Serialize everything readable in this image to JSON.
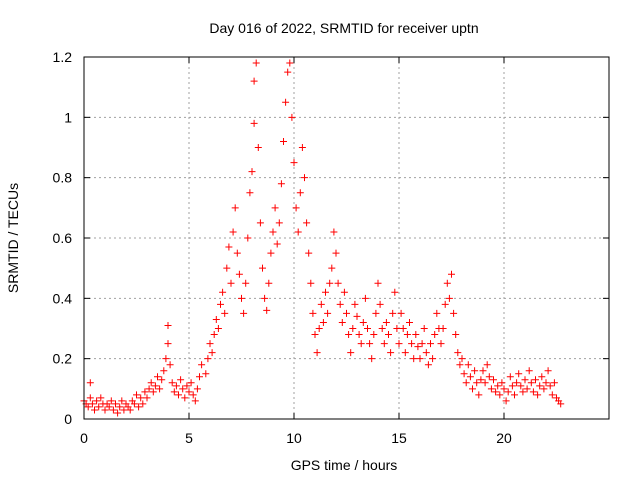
{
  "chart_data": {
    "type": "scatter",
    "title": "Day 016 of 2022, SRMTID for receiver uptn",
    "xlabel": "GPS time / hours",
    "ylabel": "SRMTID / TECUs",
    "xlim": [
      0,
      25
    ],
    "ylim": [
      0,
      1.2
    ],
    "x_ticks": [
      0,
      5,
      10,
      15,
      20
    ],
    "x_tick_labels": [
      "0",
      "5",
      "10",
      "15",
      "20"
    ],
    "y_ticks": [
      0,
      0.2,
      0.4,
      0.6,
      0.8,
      1,
      1.2
    ],
    "y_tick_labels": [
      "0",
      "0.2",
      "0.4",
      "0.6",
      "0.8",
      "1",
      "1.2"
    ],
    "grid": true,
    "marker": "+",
    "color": "#ff0000",
    "series": [
      {
        "name": "SRMTID",
        "points": [
          [
            0.0,
            0.06
          ],
          [
            0.1,
            0.05
          ],
          [
            0.2,
            0.04
          ],
          [
            0.3,
            0.07
          ],
          [
            0.3,
            0.12
          ],
          [
            0.4,
            0.05
          ],
          [
            0.5,
            0.03
          ],
          [
            0.6,
            0.06
          ],
          [
            0.7,
            0.04
          ],
          [
            0.8,
            0.07
          ],
          [
            0.9,
            0.05
          ],
          [
            1.0,
            0.03
          ],
          [
            1.1,
            0.05
          ],
          [
            1.2,
            0.04
          ],
          [
            1.3,
            0.06
          ],
          [
            1.4,
            0.03
          ],
          [
            1.5,
            0.05
          ],
          [
            1.6,
            0.02
          ],
          [
            1.7,
            0.04
          ],
          [
            1.8,
            0.06
          ],
          [
            1.9,
            0.03
          ],
          [
            2.0,
            0.05
          ],
          [
            2.1,
            0.04
          ],
          [
            2.2,
            0.03
          ],
          [
            2.3,
            0.06
          ],
          [
            2.4,
            0.05
          ],
          [
            2.5,
            0.08
          ],
          [
            2.6,
            0.04
          ],
          [
            2.7,
            0.07
          ],
          [
            2.8,
            0.05
          ],
          [
            2.9,
            0.09
          ],
          [
            3.0,
            0.07
          ],
          [
            3.1,
            0.1
          ],
          [
            3.2,
            0.12
          ],
          [
            3.3,
            0.09
          ],
          [
            3.4,
            0.11
          ],
          [
            3.5,
            0.14
          ],
          [
            3.6,
            0.1
          ],
          [
            3.7,
            0.13
          ],
          [
            3.8,
            0.16
          ],
          [
            3.9,
            0.2
          ],
          [
            4.0,
            0.25
          ],
          [
            4.0,
            0.31
          ],
          [
            4.1,
            0.18
          ],
          [
            4.2,
            0.12
          ],
          [
            4.3,
            0.09
          ],
          [
            4.4,
            0.11
          ],
          [
            4.5,
            0.08
          ],
          [
            4.6,
            0.13
          ],
          [
            4.7,
            0.1
          ],
          [
            4.8,
            0.07
          ],
          [
            4.9,
            0.11
          ],
          [
            5.0,
            0.09
          ],
          [
            5.1,
            0.12
          ],
          [
            5.2,
            0.08
          ],
          [
            5.3,
            0.06
          ],
          [
            5.4,
            0.1
          ],
          [
            5.5,
            0.14
          ],
          [
            5.6,
            0.18
          ],
          [
            5.8,
            0.15
          ],
          [
            5.9,
            0.2
          ],
          [
            6.0,
            0.25
          ],
          [
            6.1,
            0.22
          ],
          [
            6.2,
            0.28
          ],
          [
            6.3,
            0.33
          ],
          [
            6.4,
            0.3
          ],
          [
            6.5,
            0.38
          ],
          [
            6.6,
            0.42
          ],
          [
            6.7,
            0.35
          ],
          [
            6.8,
            0.5
          ],
          [
            6.9,
            0.57
          ],
          [
            7.0,
            0.45
          ],
          [
            7.1,
            0.62
          ],
          [
            7.2,
            0.7
          ],
          [
            7.3,
            0.55
          ],
          [
            7.4,
            0.48
          ],
          [
            7.5,
            0.4
          ],
          [
            7.6,
            0.35
          ],
          [
            7.7,
            0.45
          ],
          [
            7.8,
            0.6
          ],
          [
            7.9,
            0.75
          ],
          [
            8.0,
            0.82
          ],
          [
            8.1,
            0.98
          ],
          [
            8.1,
            1.12
          ],
          [
            8.2,
            1.18
          ],
          [
            8.3,
            0.9
          ],
          [
            8.4,
            0.65
          ],
          [
            8.5,
            0.5
          ],
          [
            8.6,
            0.4
          ],
          [
            8.7,
            0.36
          ],
          [
            8.8,
            0.45
          ],
          [
            8.9,
            0.55
          ],
          [
            9.0,
            0.62
          ],
          [
            9.1,
            0.7
          ],
          [
            9.2,
            0.58
          ],
          [
            9.3,
            0.65
          ],
          [
            9.4,
            0.78
          ],
          [
            9.5,
            0.92
          ],
          [
            9.6,
            1.05
          ],
          [
            9.7,
            1.15
          ],
          [
            9.8,
            1.18
          ],
          [
            9.9,
            1.0
          ],
          [
            10.0,
            0.85
          ],
          [
            10.1,
            0.7
          ],
          [
            10.2,
            0.62
          ],
          [
            10.3,
            0.75
          ],
          [
            10.4,
            0.9
          ],
          [
            10.5,
            0.8
          ],
          [
            10.6,
            0.65
          ],
          [
            10.7,
            0.55
          ],
          [
            10.8,
            0.45
          ],
          [
            10.9,
            0.35
          ],
          [
            11.0,
            0.28
          ],
          [
            11.1,
            0.22
          ],
          [
            11.2,
            0.3
          ],
          [
            11.3,
            0.38
          ],
          [
            11.4,
            0.32
          ],
          [
            11.5,
            0.42
          ],
          [
            11.6,
            0.35
          ],
          [
            11.7,
            0.45
          ],
          [
            11.8,
            0.5
          ],
          [
            11.9,
            0.62
          ],
          [
            12.0,
            0.55
          ],
          [
            12.1,
            0.45
          ],
          [
            12.2,
            0.38
          ],
          [
            12.3,
            0.32
          ],
          [
            12.4,
            0.42
          ],
          [
            12.5,
            0.35
          ],
          [
            12.6,
            0.28
          ],
          [
            12.7,
            0.22
          ],
          [
            12.8,
            0.3
          ],
          [
            12.9,
            0.38
          ],
          [
            13.0,
            0.34
          ],
          [
            13.1,
            0.28
          ],
          [
            13.2,
            0.25
          ],
          [
            13.3,
            0.32
          ],
          [
            13.4,
            0.4
          ],
          [
            13.5,
            0.3
          ],
          [
            13.6,
            0.25
          ],
          [
            13.7,
            0.2
          ],
          [
            13.8,
            0.28
          ],
          [
            13.9,
            0.35
          ],
          [
            14.0,
            0.45
          ],
          [
            14.1,
            0.38
          ],
          [
            14.2,
            0.3
          ],
          [
            14.3,
            0.25
          ],
          [
            14.4,
            0.32
          ],
          [
            14.5,
            0.28
          ],
          [
            14.6,
            0.22
          ],
          [
            14.7,
            0.35
          ],
          [
            14.8,
            0.42
          ],
          [
            14.9,
            0.3
          ],
          [
            15.0,
            0.25
          ],
          [
            15.1,
            0.35
          ],
          [
            15.2,
            0.3
          ],
          [
            15.3,
            0.22
          ],
          [
            15.4,
            0.28
          ],
          [
            15.5,
            0.32
          ],
          [
            15.6,
            0.25
          ],
          [
            15.7,
            0.2
          ],
          [
            15.8,
            0.28
          ],
          [
            15.9,
            0.24
          ],
          [
            16.0,
            0.2
          ],
          [
            16.1,
            0.25
          ],
          [
            16.2,
            0.3
          ],
          [
            16.3,
            0.22
          ],
          [
            16.4,
            0.18
          ],
          [
            16.5,
            0.25
          ],
          [
            16.6,
            0.2
          ],
          [
            16.7,
            0.28
          ],
          [
            16.8,
            0.35
          ],
          [
            16.9,
            0.3
          ],
          [
            17.0,
            0.25
          ],
          [
            17.1,
            0.3
          ],
          [
            17.2,
            0.38
          ],
          [
            17.3,
            0.45
          ],
          [
            17.4,
            0.4
          ],
          [
            17.5,
            0.48
          ],
          [
            17.6,
            0.35
          ],
          [
            17.7,
            0.28
          ],
          [
            17.8,
            0.22
          ],
          [
            17.9,
            0.18
          ],
          [
            18.0,
            0.2
          ],
          [
            18.1,
            0.15
          ],
          [
            18.2,
            0.12
          ],
          [
            18.3,
            0.18
          ],
          [
            18.4,
            0.14
          ],
          [
            18.5,
            0.1
          ],
          [
            18.6,
            0.16
          ],
          [
            18.7,
            0.12
          ],
          [
            18.8,
            0.08
          ],
          [
            18.9,
            0.13
          ],
          [
            19.0,
            0.16
          ],
          [
            19.1,
            0.12
          ],
          [
            19.2,
            0.18
          ],
          [
            19.3,
            0.14
          ],
          [
            19.4,
            0.1
          ],
          [
            19.5,
            0.13
          ],
          [
            19.6,
            0.09
          ],
          [
            19.7,
            0.11
          ],
          [
            19.8,
            0.08
          ],
          [
            19.9,
            0.12
          ],
          [
            20.0,
            0.1
          ],
          [
            20.1,
            0.06
          ],
          [
            20.2,
            0.09
          ],
          [
            20.3,
            0.14
          ],
          [
            20.4,
            0.11
          ],
          [
            20.5,
            0.08
          ],
          [
            20.6,
            0.12
          ],
          [
            20.7,
            0.15
          ],
          [
            20.8,
            0.11
          ],
          [
            20.9,
            0.09
          ],
          [
            21.0,
            0.13
          ],
          [
            21.1,
            0.1
          ],
          [
            21.2,
            0.16
          ],
          [
            21.3,
            0.12
          ],
          [
            21.4,
            0.09
          ],
          [
            21.5,
            0.13
          ],
          [
            21.6,
            0.08
          ],
          [
            21.7,
            0.11
          ],
          [
            21.8,
            0.14
          ],
          [
            21.9,
            0.1
          ],
          [
            22.0,
            0.12
          ],
          [
            22.1,
            0.16
          ],
          [
            22.2,
            0.11
          ],
          [
            22.3,
            0.08
          ],
          [
            22.4,
            0.12
          ],
          [
            22.5,
            0.07
          ],
          [
            22.6,
            0.06
          ],
          [
            22.7,
            0.05
          ]
        ]
      }
    ]
  }
}
